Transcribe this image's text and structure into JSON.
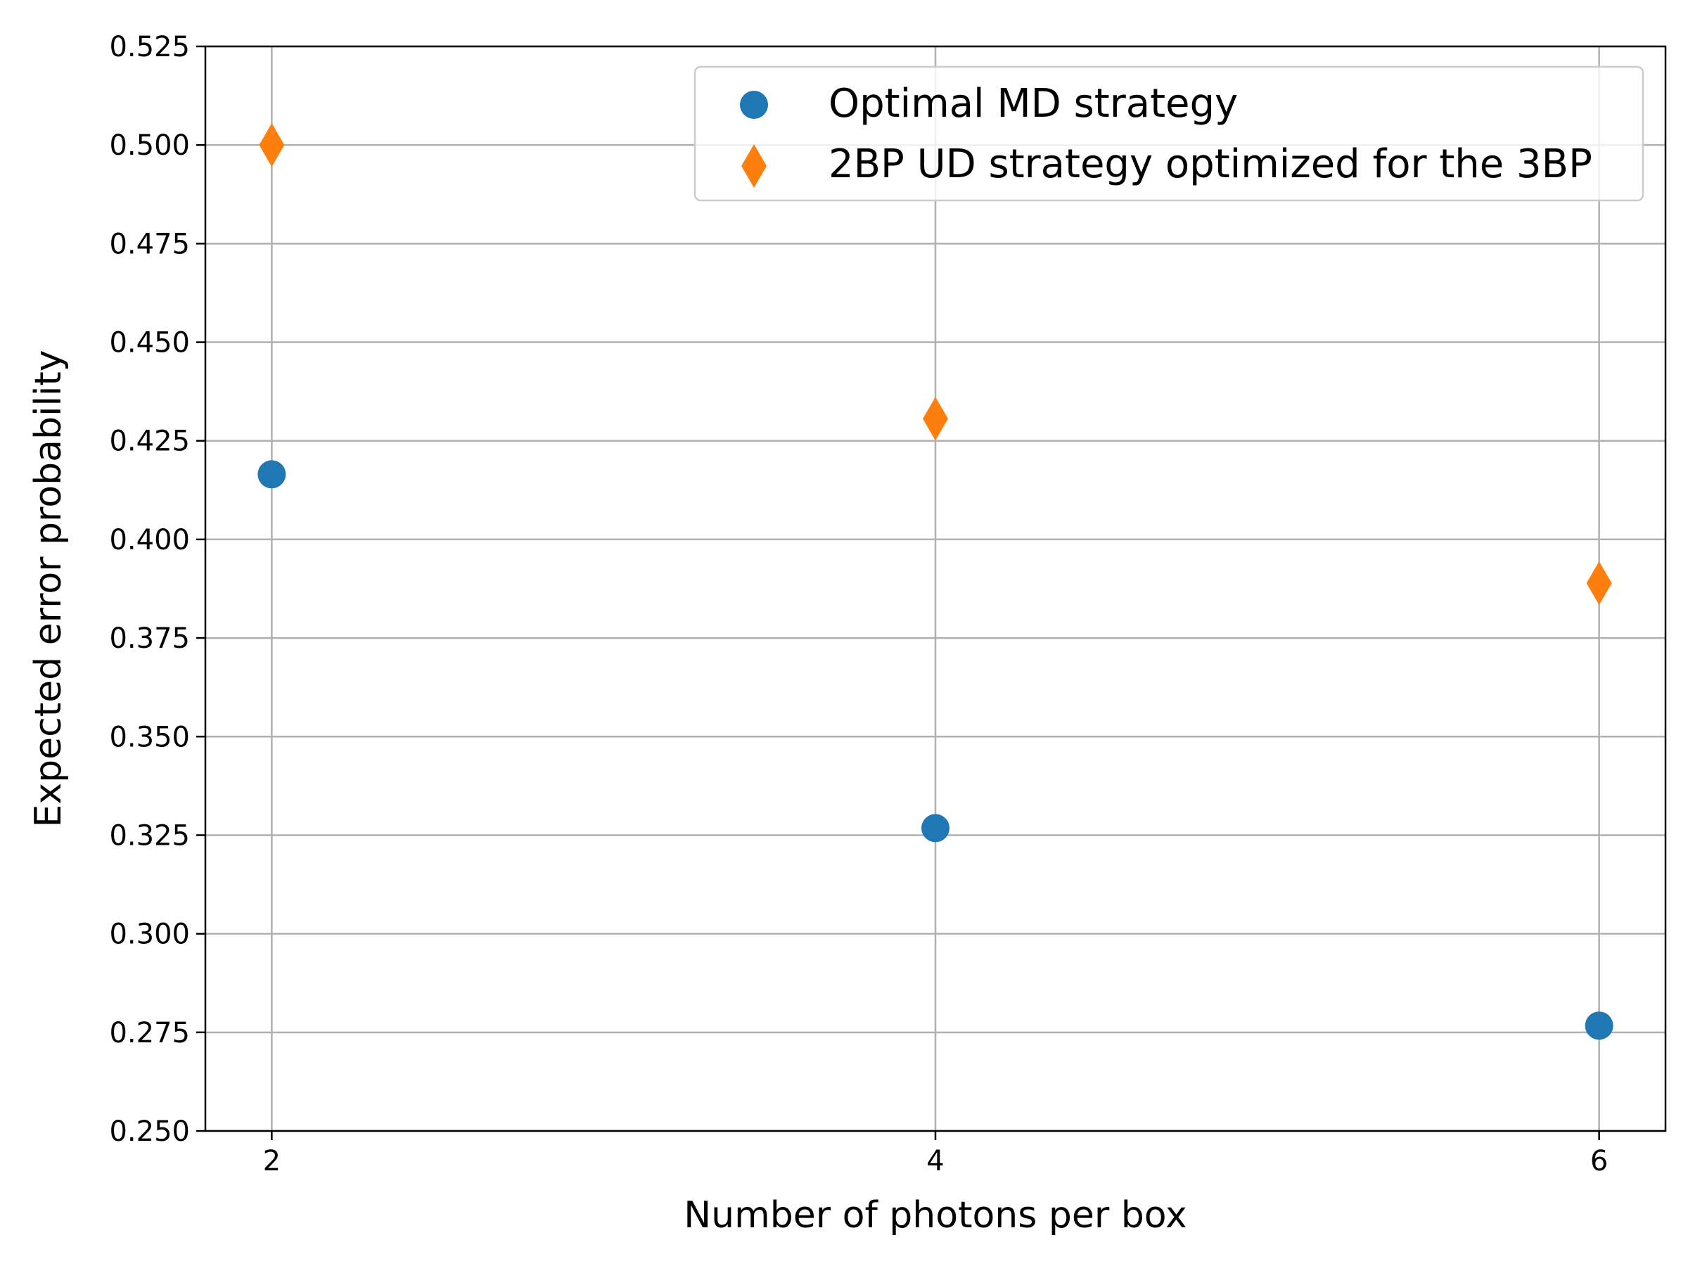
{
  "chart_data": {
    "type": "scatter",
    "title": "",
    "xlabel": "Number of photons per box",
    "ylabel": "Expected error probability",
    "xlim": [
      1.8,
      6.2
    ],
    "ylim": [
      0.25,
      0.525
    ],
    "xticks": [
      2,
      4,
      6
    ],
    "xtick_labels": [
      "2",
      "4",
      "6"
    ],
    "yticks": [
      0.25,
      0.275,
      0.3,
      0.325,
      0.35,
      0.375,
      0.4,
      0.425,
      0.45,
      0.475,
      0.5,
      0.525
    ],
    "ytick_labels": [
      "0.250",
      "0.275",
      "0.300",
      "0.325",
      "0.350",
      "0.375",
      "0.400",
      "0.425",
      "0.450",
      "0.475",
      "0.500",
      "0.525"
    ],
    "grid": true,
    "legend": "top-right",
    "series": [
      {
        "name": "Optimal MD strategy",
        "marker": "circle",
        "color": "#1f77b4",
        "x": [
          2,
          4,
          6
        ],
        "y": [
          0.4165,
          0.3268,
          0.2767
        ]
      },
      {
        "name": "2BP UD strategy optimized for the 3BP",
        "marker": "diamond",
        "color": "#ff7f0e",
        "x": [
          2,
          4,
          6
        ],
        "y": [
          0.5,
          0.4306,
          0.3889
        ]
      }
    ]
  }
}
